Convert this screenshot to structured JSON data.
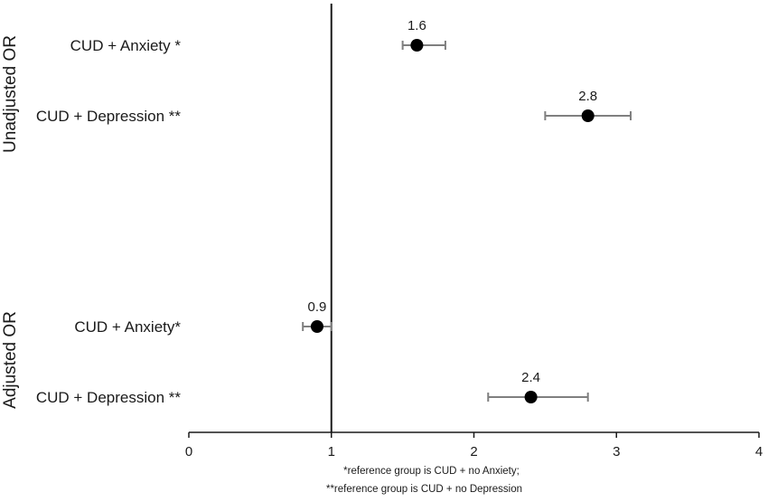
{
  "chart_data": {
    "type": "scatter",
    "subtype": "forest-plot",
    "title": "",
    "xlabel": "",
    "ylabel": "",
    "xlim": [
      0,
      4
    ],
    "x_ticks": [
      "0",
      "1",
      "2",
      "3",
      "4"
    ],
    "reference_line_x": 1,
    "grid": false,
    "legend": "none",
    "marker_color": "#000000",
    "error_bar_color": "#7f7f7f",
    "groups": [
      {
        "label": "Unadjusted OR",
        "rows": [
          {
            "label": "CUD + Anxiety  *",
            "value": 1.6,
            "value_label": "1.6",
            "ci": [
              1.5,
              1.8
            ]
          },
          {
            "label": "CUD + Depression **",
            "value": 2.8,
            "value_label": "2.8",
            "ci": [
              2.5,
              3.1
            ]
          }
        ]
      },
      {
        "label": "Adjusted OR",
        "rows": [
          {
            "label": "CUD + Anxiety*",
            "value": 0.9,
            "value_label": "0.9",
            "ci": [
              0.8,
              1.0
            ]
          },
          {
            "label": "CUD + Depression **",
            "value": 2.4,
            "value_label": "2.4",
            "ci": [
              2.1,
              2.8
            ]
          }
        ]
      }
    ],
    "footnotes": [
      "*reference group is CUD + no Anxiety;",
      "**reference group is CUD + no Depression"
    ]
  }
}
